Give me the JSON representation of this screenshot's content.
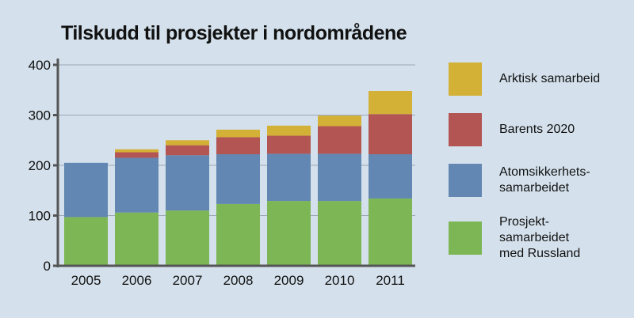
{
  "chart_data": {
    "type": "bar",
    "stacked": true,
    "title": "Tilskudd til prosjekter i nordområdene",
    "xlabel": "",
    "ylabel": "",
    "categories": [
      "2005",
      "2006",
      "2007",
      "2008",
      "2009",
      "2010",
      "2011"
    ],
    "ylim": [
      0,
      400
    ],
    "yticks": [
      "0",
      "100",
      "200",
      "300",
      "400"
    ],
    "grid": true,
    "legend_position": "right",
    "series": [
      {
        "name": "Prosjekt-\nsamarbeidet\nmed Russland",
        "color": "#7db655",
        "values": [
          97,
          106,
          110,
          123,
          129,
          129,
          134
        ]
      },
      {
        "name": "Atomsikkerhets-\nsamarbeidet",
        "color": "#6187b2",
        "values": [
          108,
          109,
          110,
          99,
          94,
          94,
          88
        ]
      },
      {
        "name": "Barents 2020",
        "color": "#b35553",
        "values": [
          0,
          11,
          20,
          34,
          36,
          55,
          80
        ]
      },
      {
        "name": "Arktisk samarbeid",
        "color": "#d3b036",
        "values": [
          0,
          6,
          10,
          15,
          20,
          21,
          46
        ]
      }
    ]
  }
}
